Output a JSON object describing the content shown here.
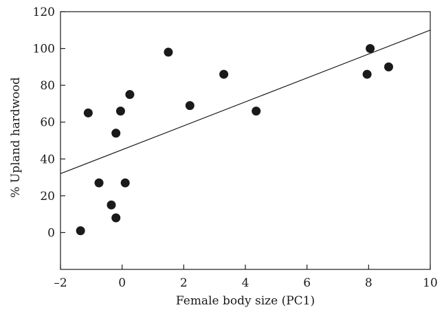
{
  "chart_data": {
    "type": "scatter",
    "title": "",
    "xlabel": "Female body size (PC1)",
    "ylabel": "% Upland hardwood",
    "xlim": [
      -2,
      10
    ],
    "ylim": [
      -20,
      120
    ],
    "x_ticks": [
      -2,
      0,
      2,
      4,
      6,
      8,
      10
    ],
    "x_tick_labels": [
      "–2",
      "0",
      "2",
      "4",
      "6",
      "8",
      "10"
    ],
    "y_ticks": [
      0,
      20,
      40,
      60,
      80,
      100,
      120
    ],
    "y_tick_labels": [
      "0",
      "20",
      "40",
      "60",
      "80",
      "100",
      "120"
    ],
    "grid": false,
    "legend": "none",
    "marker_color": "#1a1a1a",
    "series": [
      {
        "points": [
          {
            "x": -1.35,
            "y": 1
          },
          {
            "x": -1.1,
            "y": 65
          },
          {
            "x": -0.75,
            "y": 27
          },
          {
            "x": -0.35,
            "y": 15
          },
          {
            "x": -0.2,
            "y": 8
          },
          {
            "x": -0.2,
            "y": 54
          },
          {
            "x": -0.05,
            "y": 66
          },
          {
            "x": 0.1,
            "y": 27
          },
          {
            "x": 0.25,
            "y": 75
          },
          {
            "x": 1.5,
            "y": 98
          },
          {
            "x": 2.2,
            "y": 69
          },
          {
            "x": 3.3,
            "y": 86
          },
          {
            "x": 4.35,
            "y": 66
          },
          {
            "x": 7.95,
            "y": 86
          },
          {
            "x": 8.05,
            "y": 100
          },
          {
            "x": 8.65,
            "y": 90
          }
        ]
      }
    ],
    "fit_line": {
      "x": [
        -2,
        10
      ],
      "y": [
        32,
        110
      ]
    }
  }
}
